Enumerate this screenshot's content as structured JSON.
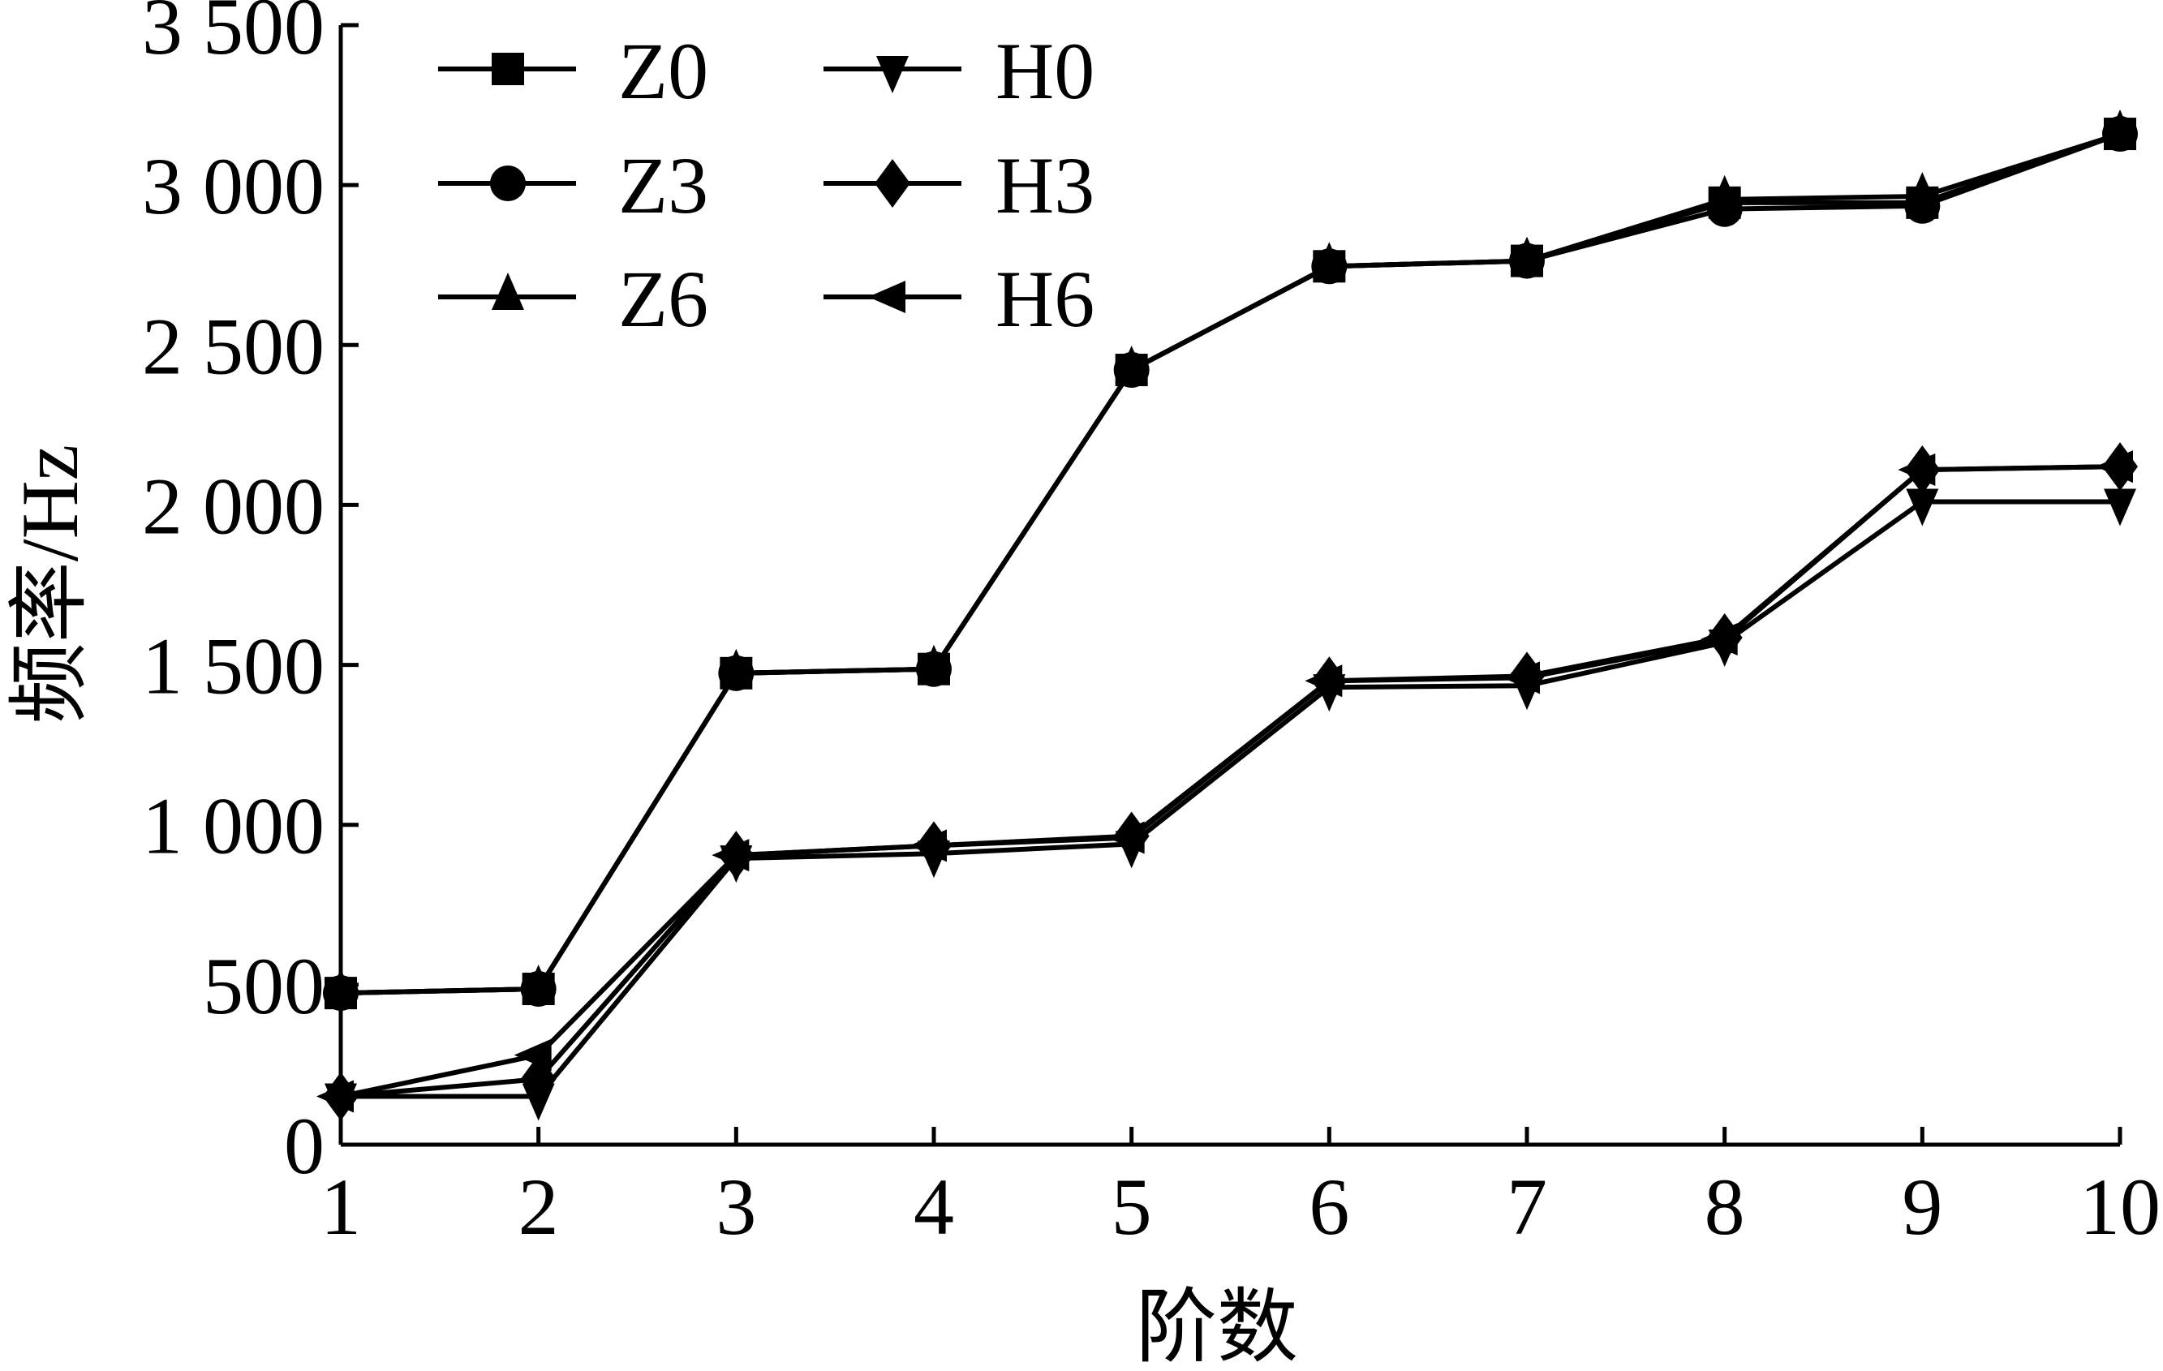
{
  "chart_data": {
    "type": "line",
    "title": "",
    "xlabel": "阶数",
    "ylabel": "频率/Hz",
    "x": [
      1,
      2,
      3,
      4,
      5,
      6,
      7,
      8,
      9,
      10
    ],
    "xticks": [
      "1",
      "2",
      "3",
      "4",
      "5",
      "6",
      "7",
      "8",
      "9",
      "10"
    ],
    "ylim": [
      0,
      3500
    ],
    "yticks": [
      0,
      500,
      1000,
      1500,
      2000,
      2500,
      3000,
      3500
    ],
    "ytick_labels": [
      "0",
      "500",
      "1 000",
      "1 500",
      "2 000",
      "2 500",
      "3 000",
      "3 500"
    ],
    "grid": false,
    "legend_position": "top-left",
    "series": [
      {
        "name": "Z0",
        "marker": "square",
        "values": [
          474,
          487,
          1474,
          1487,
          2422,
          2746,
          2763,
          2945,
          2945,
          3160
        ]
      },
      {
        "name": "H0",
        "marker": "triangle-down",
        "values": [
          151,
          151,
          895,
          910,
          940,
          1430,
          1435,
          1570,
          2010,
          2010
        ]
      },
      {
        "name": "Z3",
        "marker": "circle",
        "values": [
          474,
          487,
          1474,
          1487,
          2422,
          2746,
          2763,
          2925,
          2935,
          3160
        ]
      },
      {
        "name": "H3",
        "marker": "diamond",
        "values": [
          151,
          205,
          905,
          935,
          965,
          1450,
          1465,
          1585,
          2110,
          2120
        ]
      },
      {
        "name": "Z6",
        "marker": "triangle-up",
        "values": [
          474,
          487,
          1474,
          1487,
          2422,
          2746,
          2763,
          2955,
          2965,
          3160
        ]
      },
      {
        "name": "H6",
        "marker": "triangle-left",
        "values": [
          151,
          280,
          905,
          935,
          960,
          1450,
          1460,
          1580,
          2110,
          2120
        ]
      }
    ]
  }
}
